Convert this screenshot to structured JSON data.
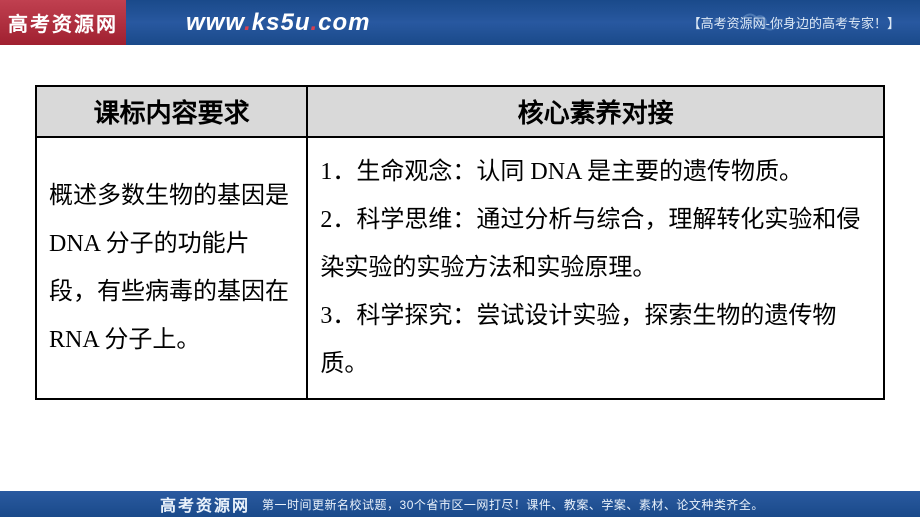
{
  "header": {
    "logo_text": "高考资源网",
    "url_prefix": "www",
    "url_mid": "ks5u",
    "url_suffix": "com",
    "tagline": "【高考资源网-你身边的高考专家！】"
  },
  "table": {
    "header_left": "课标内容要求",
    "header_right": "核心素养对接",
    "cell_left": "概述多数生物的基因是 DNA 分子的功能片段，有些病毒的基因在 RNA 分子上。",
    "cell_right": "1．生命观念：认同 DNA 是主要的遗传物质。\n2．科学思维：通过分析与综合，理解转化实验和侵染实验的实验方法和实验原理。\n3．科学探究：尝试设计实验，探索生物的遗传物质。",
    "colors": {
      "header_bg": "#d9d9d9",
      "border": "#000000",
      "text": "#000000"
    },
    "font": {
      "header_size_pt": 20,
      "body_size_pt": 18,
      "header_weight": "bold",
      "body_weight": "normal"
    }
  },
  "footer": {
    "logo_text": "高考资源网",
    "text": "第一时间更新名校试题，30个省市区一网打尽！课件、教案、学案、素材、论文种类齐全。"
  },
  "theme": {
    "header_bg": "#1a4a8a",
    "header_text": "#ffffff",
    "accent": "#d84050",
    "page_bg": "#ffffff"
  }
}
